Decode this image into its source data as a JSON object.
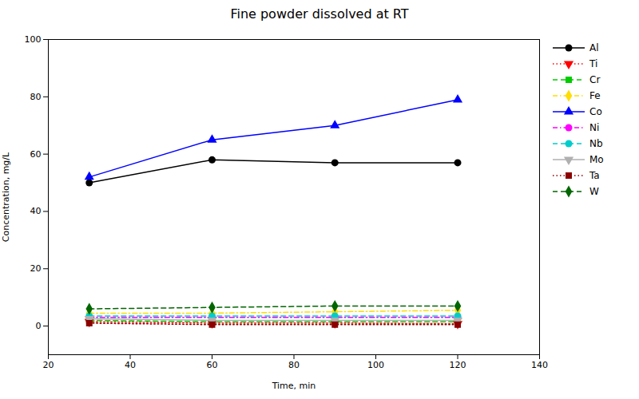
{
  "chart_data": {
    "type": "line",
    "title": "Fine powder dissolved at RT",
    "xlabel": "Time, min",
    "ylabel": "Concentration, mg/L",
    "x": [
      30,
      60,
      90,
      120
    ],
    "xlim": [
      20,
      140
    ],
    "xticks": [
      20,
      40,
      60,
      80,
      100,
      120,
      140
    ],
    "ylim": [
      -10,
      100
    ],
    "yticks": [
      0,
      20,
      40,
      60,
      80,
      100
    ],
    "grid": false,
    "legend": "right",
    "series": [
      {
        "name": "Al",
        "color": "#000000",
        "marker": "circle",
        "line_style": "solid",
        "values": [
          50,
          58,
          57,
          57
        ]
      },
      {
        "name": "Ti",
        "color": "#ff0000",
        "marker": "triangle_down",
        "line_style": "dotted",
        "values": [
          1.5,
          1.0,
          1.0,
          0.8
        ]
      },
      {
        "name": "Cr",
        "color": "#00cc00",
        "marker": "square",
        "line_style": "dashed",
        "values": [
          2.0,
          1.5,
          1.5,
          1.5
        ]
      },
      {
        "name": "Fe",
        "color": "#ffdd00",
        "marker": "diamond",
        "line_style": "dashdot",
        "values": [
          4.5,
          4.5,
          5.0,
          5.5
        ]
      },
      {
        "name": "Co",
        "color": "#0000ff",
        "marker": "triangle_up",
        "line_style": "solid",
        "values": [
          52,
          65,
          70,
          79
        ]
      },
      {
        "name": "Ni",
        "color": "#ff00ff",
        "marker": "circle",
        "line_style": "dashdot",
        "values": [
          3.0,
          3.0,
          3.0,
          3.0
        ]
      },
      {
        "name": "Nb",
        "color": "#00cccc",
        "marker": "circle",
        "line_style": "dashed",
        "values": [
          3.5,
          3.5,
          3.5,
          3.5
        ]
      },
      {
        "name": "Mo",
        "color": "#b0b0b0",
        "marker": "triangle_down",
        "line_style": "solid",
        "values": [
          2.5,
          2.0,
          2.0,
          2.0
        ]
      },
      {
        "name": "Ta",
        "color": "#8b0000",
        "marker": "square",
        "line_style": "dotted",
        "values": [
          1.0,
          0.5,
          0.5,
          0.5
        ]
      },
      {
        "name": "W",
        "color": "#006600",
        "marker": "diamond",
        "line_style": "dashed",
        "values": [
          6.0,
          6.5,
          7.0,
          7.0
        ]
      }
    ]
  }
}
